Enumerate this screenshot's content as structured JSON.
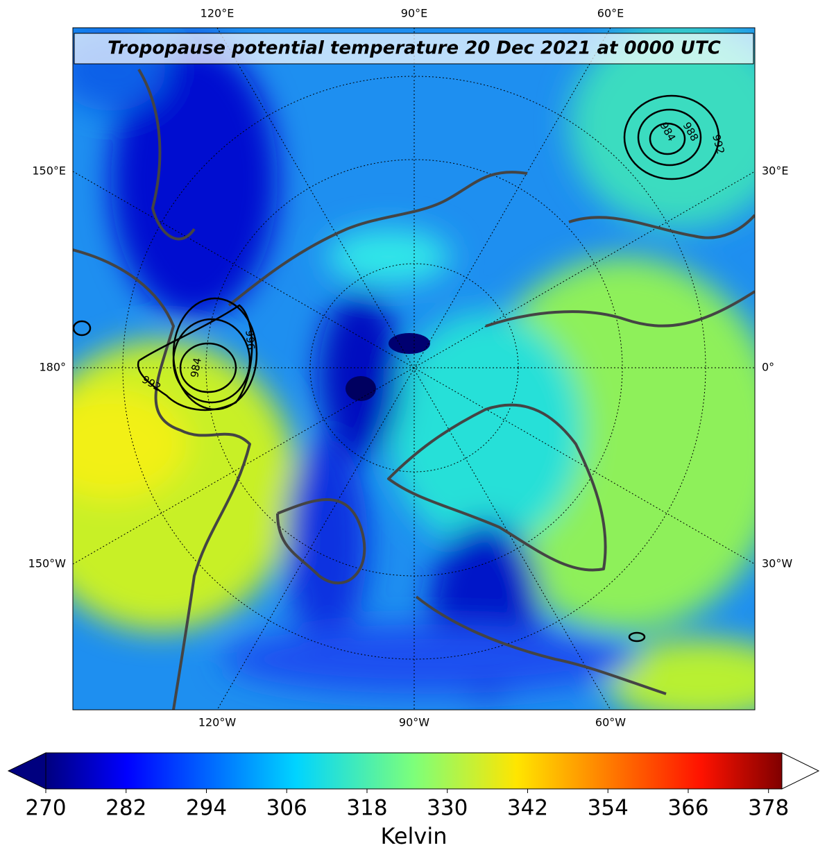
{
  "map": {
    "title": "Tropopause potential temperature 20 Dec 2021 at 0000 UTC",
    "top_labels": [
      "120°E",
      "90°E",
      "60°E"
    ],
    "bottom_labels": [
      "120°W",
      "90°W",
      "60°W"
    ],
    "left_labels": [
      "150°E",
      "180°",
      "150°W"
    ],
    "right_labels": [
      "30°E",
      "0°",
      "30°W"
    ],
    "contour_labels": [
      "984",
      "988",
      "992",
      "996",
      "984",
      "992"
    ]
  },
  "colorbar": {
    "label": "Kelvin",
    "lim": [
      270,
      380
    ],
    "ticks": [
      270,
      282,
      294,
      306,
      318,
      330,
      342,
      354,
      366,
      378
    ],
    "colormap": "jet",
    "extend": "both"
  }
}
